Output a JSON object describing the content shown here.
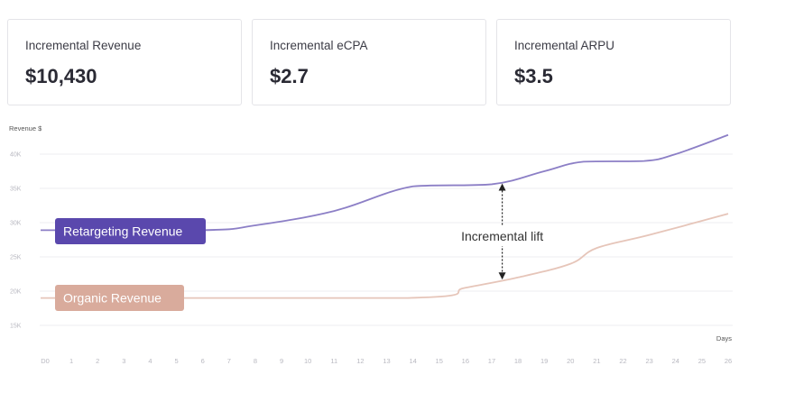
{
  "cards": [
    {
      "label": "Incremental Revenue",
      "value": "$10,430"
    },
    {
      "label": "Incremental eCPA",
      "value": "$2.7"
    },
    {
      "label": "Incremental ARPU",
      "value": "$3.5"
    }
  ],
  "chart_data": {
    "type": "line",
    "ylabel": "Revenue $",
    "xlabel": "Days",
    "ylim": [
      15000,
      40000
    ],
    "y_ticks": [
      "15K",
      "20K",
      "25K",
      "30K",
      "35K",
      "40K"
    ],
    "x_ticks": [
      "D0",
      "1",
      "2",
      "3",
      "4",
      "5",
      "6",
      "7",
      "8",
      "9",
      "10",
      "11",
      "12",
      "13",
      "14",
      "15",
      "16",
      "17",
      "18",
      "19",
      "20",
      "21",
      "22",
      "23",
      "24",
      "25",
      "26"
    ],
    "grid": true,
    "series": [
      {
        "name": "Retargeting Revenue",
        "color": "#8c7fc6",
        "label_color": "#5a48ad",
        "x": [
          0,
          6,
          8,
          11,
          14,
          17,
          19,
          20.5,
          22.8,
          24,
          26
        ],
        "y": [
          28900,
          28900,
          29600,
          31700,
          35300,
          35600,
          37500,
          38900,
          39000,
          40000,
          42800
        ]
      },
      {
        "name": "Organic Revenue",
        "color": "#e6c5b9",
        "label_color": "#d9ab9c",
        "x": [
          0,
          13.8,
          16,
          18,
          20,
          21,
          23,
          26
        ],
        "y": [
          19000,
          19000,
          20500,
          22000,
          24000,
          26300,
          28200,
          31300
        ]
      }
    ],
    "annotation": {
      "text": "Incremental lift",
      "x": 17.4
    }
  }
}
